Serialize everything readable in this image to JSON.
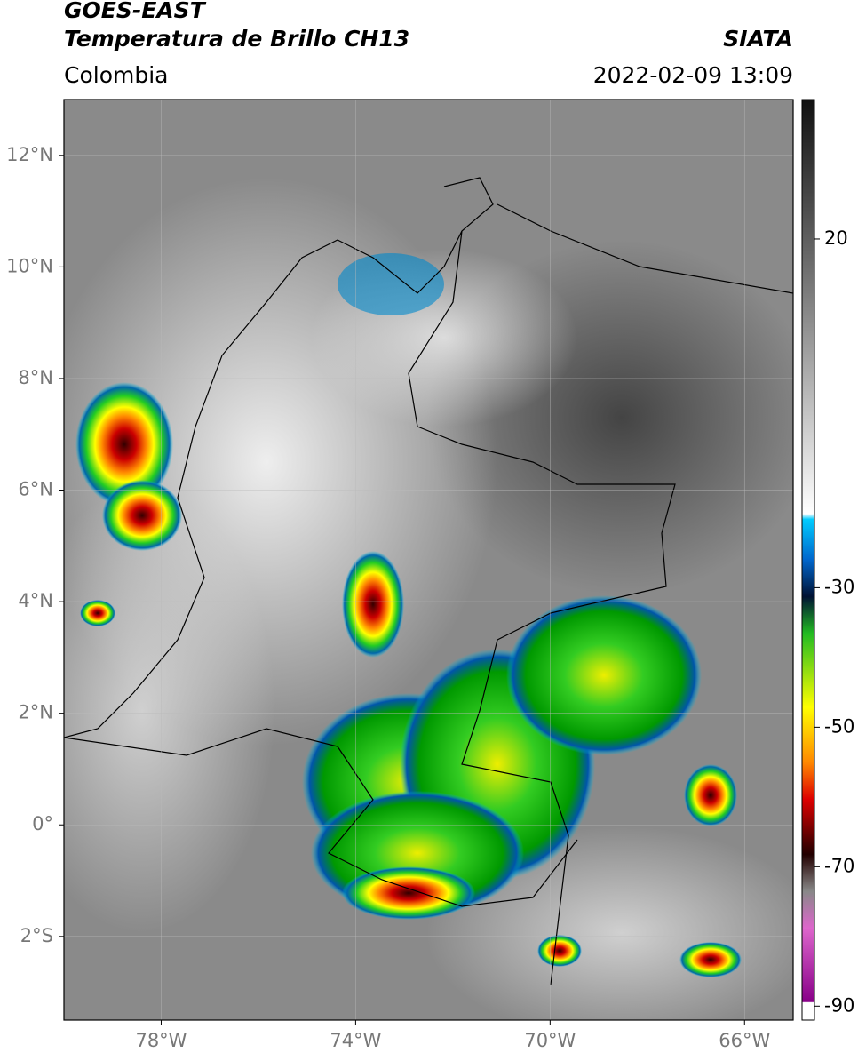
{
  "header": {
    "title_line1": "GOES-EAST",
    "title_line2": "Temperatura de Brillo CH13",
    "region": "Colombia",
    "source": "SIATA",
    "datetime": "2022-02-09 13:09"
  },
  "map": {
    "lon_range": [
      -80,
      -65
    ],
    "lat_range": [
      -3.5,
      13
    ],
    "lon_ticks": [
      {
        "value": -78,
        "label": "78°W"
      },
      {
        "value": -74,
        "label": "74°W"
      },
      {
        "value": -70,
        "label": "70°W"
      },
      {
        "value": -66,
        "label": "66°W"
      }
    ],
    "lat_ticks": [
      {
        "value": 12,
        "label": "12°N"
      },
      {
        "value": 10,
        "label": "10°N"
      },
      {
        "value": 8,
        "label": "8°N"
      },
      {
        "value": 6,
        "label": "6°N"
      },
      {
        "value": 4,
        "label": "4°N"
      },
      {
        "value": 2,
        "label": "2°N"
      },
      {
        "value": 0,
        "label": "0°"
      },
      {
        "value": -2,
        "label": "2°S"
      }
    ]
  },
  "colorbar": {
    "range": [
      -92,
      40
    ],
    "ticks": [
      20,
      -30,
      -50,
      -70,
      -90
    ]
  }
}
